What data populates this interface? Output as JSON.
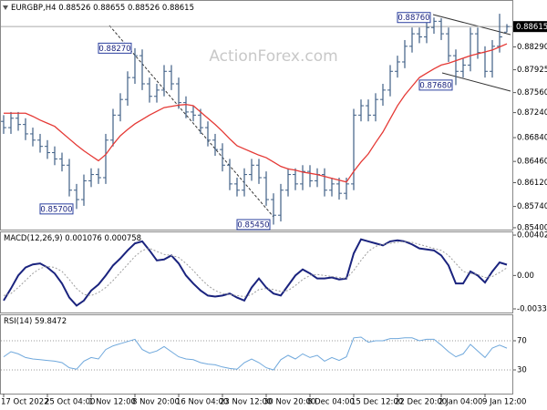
{
  "chart_data": [
    {
      "type": "candlestick",
      "title": "EURGBP,H4",
      "watermark": "ActionForex.com",
      "color": "#3f5f86",
      "open": [
        0.871,
        0.87,
        0.8715,
        0.8705,
        0.869,
        0.868,
        0.867,
        0.866,
        0.865,
        0.864,
        0.86,
        0.8585,
        0.8615,
        0.8625,
        0.862,
        0.868,
        0.872,
        0.8745,
        0.878,
        0.8815,
        0.877,
        0.875,
        0.876,
        0.879,
        0.877,
        0.874,
        0.8725,
        0.872,
        0.87,
        0.868,
        0.8665,
        0.864,
        0.861,
        0.86,
        0.8625,
        0.864,
        0.862,
        0.8585,
        0.856,
        0.86,
        0.8625,
        0.861,
        0.863,
        0.8615,
        0.8625,
        0.86,
        0.861,
        0.8595,
        0.861,
        0.872,
        0.8735,
        0.872,
        0.8745,
        0.876,
        0.879,
        0.8805,
        0.883,
        0.885,
        0.8845,
        0.886,
        0.887,
        0.885,
        0.8815,
        0.879,
        0.88,
        0.885,
        0.882,
        0.879,
        0.883,
        0.88526
      ],
      "high": [
        0.872,
        0.8725,
        0.8725,
        0.8715,
        0.87,
        0.869,
        0.868,
        0.867,
        0.866,
        0.865,
        0.861,
        0.8625,
        0.8635,
        0.8635,
        0.869,
        0.873,
        0.8755,
        0.879,
        0.8827,
        0.8825,
        0.878,
        0.877,
        0.88,
        0.88,
        0.878,
        0.875,
        0.8735,
        0.873,
        0.871,
        0.869,
        0.8675,
        0.865,
        0.862,
        0.8635,
        0.865,
        0.865,
        0.863,
        0.8595,
        0.861,
        0.8635,
        0.8635,
        0.864,
        0.864,
        0.8635,
        0.8635,
        0.862,
        0.862,
        0.862,
        0.873,
        0.8745,
        0.8745,
        0.8755,
        0.877,
        0.88,
        0.8815,
        0.884,
        0.886,
        0.886,
        0.887,
        0.8876,
        0.8875,
        0.886,
        0.8825,
        0.881,
        0.886,
        0.886,
        0.883,
        0.884,
        0.8882,
        0.88655
      ],
      "low": [
        0.869,
        0.869,
        0.8695,
        0.868,
        0.867,
        0.866,
        0.865,
        0.864,
        0.863,
        0.859,
        0.857,
        0.8575,
        0.8605,
        0.861,
        0.861,
        0.867,
        0.871,
        0.8735,
        0.877,
        0.876,
        0.874,
        0.874,
        0.875,
        0.876,
        0.873,
        0.8715,
        0.871,
        0.869,
        0.867,
        0.8655,
        0.863,
        0.86,
        0.859,
        0.859,
        0.8615,
        0.861,
        0.8575,
        0.8545,
        0.855,
        0.859,
        0.86,
        0.86,
        0.8605,
        0.8605,
        0.859,
        0.859,
        0.8585,
        0.8585,
        0.86,
        0.871,
        0.871,
        0.871,
        0.8735,
        0.875,
        0.878,
        0.8795,
        0.882,
        0.8835,
        0.8835,
        0.885,
        0.884,
        0.8805,
        0.8768,
        0.878,
        0.879,
        0.881,
        0.878,
        0.878,
        0.882,
        0.88526
      ],
      "close": [
        0.87,
        0.8715,
        0.8705,
        0.869,
        0.868,
        0.867,
        0.866,
        0.865,
        0.864,
        0.86,
        0.8585,
        0.8615,
        0.8625,
        0.862,
        0.868,
        0.872,
        0.8745,
        0.878,
        0.8815,
        0.877,
        0.875,
        0.876,
        0.879,
        0.877,
        0.874,
        0.8725,
        0.872,
        0.87,
        0.868,
        0.8665,
        0.864,
        0.861,
        0.86,
        0.8625,
        0.864,
        0.862,
        0.8585,
        0.856,
        0.86,
        0.8625,
        0.861,
        0.863,
        0.8615,
        0.8625,
        0.86,
        0.861,
        0.8595,
        0.861,
        0.872,
        0.8735,
        0.872,
        0.8745,
        0.876,
        0.879,
        0.8805,
        0.883,
        0.885,
        0.8845,
        0.886,
        0.887,
        0.885,
        0.8815,
        0.879,
        0.88,
        0.885,
        0.882,
        0.879,
        0.883,
        0.8845,
        0.88615
      ],
      "moving_average": {
        "color": "#e53935",
        "values": [
          0.8723,
          0.8723,
          0.8723,
          0.8723,
          0.8718,
          0.8712,
          0.8707,
          0.8702,
          0.8692,
          0.8682,
          0.8672,
          0.8663,
          0.8655,
          0.8647,
          0.8657,
          0.8673,
          0.8687,
          0.8697,
          0.8706,
          0.8713,
          0.872,
          0.8726,
          0.8732,
          0.8734,
          0.8736,
          0.8737,
          0.8735,
          0.8725,
          0.8715,
          0.8705,
          0.8694,
          0.8682,
          0.8671,
          0.8666,
          0.8661,
          0.8656,
          0.8652,
          0.8645,
          0.8638,
          0.8634,
          0.8632,
          0.8629,
          0.8627,
          0.8625,
          0.8622,
          0.8619,
          0.8616,
          0.8613,
          0.863,
          0.8645,
          0.8658,
          0.8676,
          0.8693,
          0.8714,
          0.8735,
          0.8752,
          0.8766,
          0.878,
          0.8787,
          0.8794,
          0.88,
          0.8803,
          0.8807,
          0.8811,
          0.8815,
          0.8818,
          0.8821,
          0.8824,
          0.8829,
          0.8834
        ]
      },
      "annotations": [
        {
          "value": 0.8827,
          "label": "0.88270"
        },
        {
          "value": 0.857,
          "label": "0.85700"
        },
        {
          "value": 0.8545,
          "label": "0.85450"
        },
        {
          "value": 0.8876,
          "label": "0.88760"
        },
        {
          "value": 0.8768,
          "label": "0.87680"
        }
      ],
      "ylim": [
        0.8537,
        0.8904
      ],
      "yticks": [
        {
          "value": 0.8829,
          "label": "0.88290"
        },
        0.87925,
        {
          "value": 0.8756,
          "label": "0.87560"
        },
        {
          "value": 0.8724,
          "label": "0.87240"
        },
        {
          "value": 0.8684,
          "label": "0.86840"
        },
        {
          "value": 0.8646,
          "label": "0.86460"
        },
        {
          "value": 0.8612,
          "label": "0.86120"
        },
        {
          "value": 0.8574,
          "label": "0.85740"
        },
        {
          "value": 0.854,
          "label": "0.85400"
        }
      ]
    },
    {
      "type": "line",
      "title": "MACD(12,26,9)",
      "series": [
        {
          "color": "#1a237e",
          "values": [
            -0.0025,
            -0.0013,
            0.0,
            0.0008,
            0.0011,
            0.0012,
            0.0008,
            0.0002,
            -0.0008,
            -0.0022,
            -0.003,
            -0.0025,
            -0.0015,
            -0.0009,
            0.0,
            0.001,
            0.0017,
            0.0025,
            0.0032,
            0.0034,
            0.0025,
            0.0015,
            0.0016,
            0.002,
            0.0012,
            0.0,
            -0.0008,
            -0.0015,
            -0.002,
            -0.0021,
            -0.002,
            -0.0018,
            -0.0022,
            -0.0025,
            -0.0012,
            -0.0003,
            -0.0012,
            -0.0018,
            -0.002,
            -0.001,
            0.0,
            0.0006,
            0.0002,
            -0.0003,
            -0.0003,
            -0.0002,
            -0.0004,
            -0.0003,
            0.0022,
            0.0036,
            0.0034,
            0.0032,
            0.003,
            0.0034,
            0.0035,
            0.0034,
            0.0031,
            0.0027,
            0.0026,
            0.0025,
            0.002,
            0.001,
            -0.0008,
            -0.0008,
            0.0004,
            0.0,
            -0.0007,
            0.0004,
            0.0013,
            0.001076
          ]
        },
        {
          "color": "#9e9e9e",
          "style": "dotted",
          "values": [
            -0.002,
            -0.0018,
            -0.0012,
            -0.0005,
            0.0002,
            0.0007,
            0.0009,
            0.0008,
            0.0004,
            -0.0004,
            -0.0013,
            -0.0019,
            -0.002,
            -0.0017,
            -0.0012,
            -0.0005,
            0.0003,
            0.0011,
            0.0019,
            0.0025,
            0.0027,
            0.0024,
            0.0021,
            0.002,
            0.0018,
            0.0012,
            0.0005,
            -0.0003,
            -0.001,
            -0.0015,
            -0.0018,
            -0.0019,
            -0.002,
            -0.0021,
            -0.0019,
            -0.0014,
            -0.0013,
            -0.0014,
            -0.0016,
            -0.0015,
            -0.001,
            -0.0004,
            0.0,
            0.0001,
            0.0,
            -0.0001,
            -0.0002,
            -0.0003,
            0.0005,
            0.0015,
            0.0024,
            0.0029,
            0.0031,
            0.0032,
            0.0033,
            0.0034,
            0.0033,
            0.0031,
            0.0029,
            0.0027,
            0.0025,
            0.002,
            0.0012,
            0.0004,
            0.0002,
            0.0001,
            -0.0002,
            -0.0001,
            0.0003,
            0.000758
          ]
        }
      ],
      "ylim": [
        -0.00369,
        0.0043
      ],
      "yticks": [
        0.004024,
        {
          "value": 0,
          "label": "0.00"
        },
        -0.003326
      ]
    },
    {
      "type": "line",
      "title": "RSI(14)",
      "grid": true,
      "categories": [
        "17 Oct 2022",
        null,
        null,
        null,
        null,
        null,
        "25 Oct 04:00",
        null,
        null,
        null,
        null,
        null,
        "1 Nov 12:00",
        null,
        null,
        null,
        null,
        null,
        "8 Nov 20:00",
        null,
        null,
        null,
        null,
        null,
        "16 Nov 04:00",
        null,
        null,
        null,
        null,
        null,
        "23 Nov 12:00",
        null,
        null,
        null,
        null,
        null,
        "30 Nov 20:00",
        null,
        null,
        null,
        null,
        null,
        "8 Dec 04:00",
        null,
        null,
        null,
        null,
        null,
        "15 Dec 12:00",
        null,
        null,
        null,
        null,
        null,
        "22 Dec 20:00",
        null,
        null,
        null,
        null,
        null,
        "2 Jan 04:00",
        null,
        null,
        null,
        null,
        null,
        "9 Jan 12:00",
        null,
        null,
        null
      ],
      "series": [
        {
          "color": "#6fa8dc",
          "values": [
            48,
            55,
            52,
            47,
            45,
            44,
            43,
            42,
            40,
            33,
            31,
            42,
            47,
            45,
            58,
            63,
            66,
            69,
            72,
            58,
            53,
            56,
            62,
            55,
            48,
            45,
            44,
            40,
            38,
            37,
            34,
            32,
            31,
            40,
            45,
            40,
            33,
            30,
            44,
            50,
            45,
            52,
            47,
            50,
            42,
            47,
            43,
            48,
            74,
            75,
            68,
            70,
            70,
            73,
            73,
            74,
            74,
            70,
            72,
            72,
            64,
            55,
            48,
            52,
            65,
            56,
            47,
            60,
            64,
            59.8472
          ]
        }
      ],
      "ylim": [
        -2.5,
        106.25
      ],
      "yticks": [
        70,
        30
      ]
    }
  ]
}
